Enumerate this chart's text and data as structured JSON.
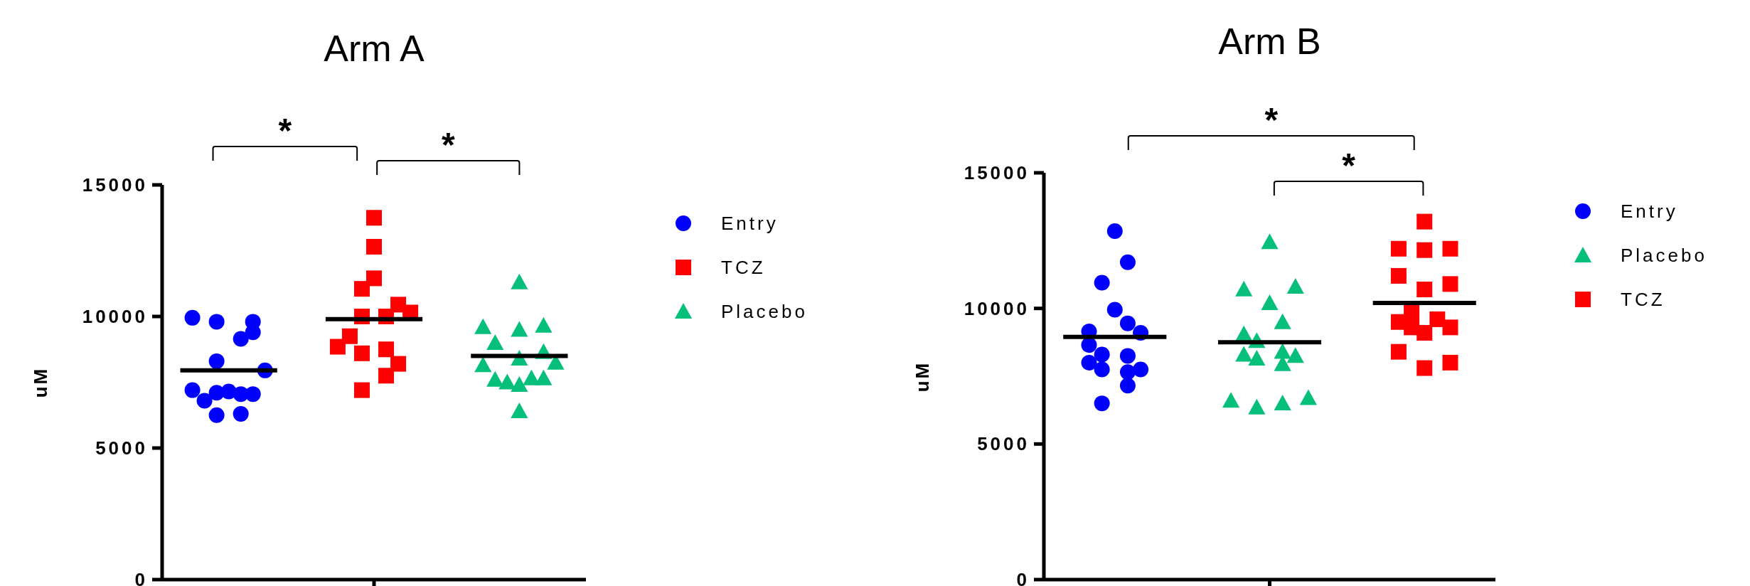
{
  "chart_data": [
    {
      "type": "scatter",
      "title": "Arm A",
      "ylabel": "uM",
      "categories": [
        null,
        null,
        null,
        null,
        null,
        null,
        null,
        null,
        null,
        null,
        null,
        null,
        null,
        null,
        null,
        null,
        null,
        null,
        null,
        null,
        null,
        null,
        null,
        null,
        null,
        null,
        null,
        null,
        null,
        null,
        null,
        null,
        null,
        null,
        null
      ],
      "ylim": [
        0,
        15000
      ],
      "yticks": [
        0,
        5000,
        10000,
        15000
      ],
      "tick_labels": "y",
      "legend": "top right",
      "annotations": [
        "*",
        "*"
      ],
      "series": [
        {
          "name": "Entry",
          "color": "#0000ff",
          "marker": "circle",
          "values": [
            null,
            null,
            9950,
            6800,
            9800,
            7150,
            9150,
            9800,
            7950,
            null,
            null,
            null,
            null,
            null,
            null,
            null,
            null,
            null,
            null,
            null,
            null,
            null,
            null,
            null,
            null,
            null,
            null,
            null,
            null,
            null,
            null,
            null,
            null,
            null,
            null
          ]
        },
        {
          "color": "#0000ff",
          "marker": "circle",
          "values": [
            null,
            null,
            7200,
            null,
            8300,
            null,
            7050,
            9400,
            null,
            null,
            null,
            null,
            null,
            null,
            null,
            null,
            null,
            null,
            null,
            null,
            null,
            null,
            null,
            null,
            null,
            null,
            null,
            null,
            null,
            null,
            null,
            null,
            null,
            null,
            null
          ]
        },
        {
          "color": "#0000ff",
          "marker": "circle",
          "values": [
            null,
            null,
            null,
            null,
            7100,
            null,
            6300,
            7050,
            null,
            null,
            null,
            null,
            null,
            null,
            null,
            null,
            null,
            null,
            null,
            null,
            null,
            null,
            null,
            null,
            null,
            null,
            null,
            null,
            null,
            null,
            null,
            null,
            null,
            null,
            null
          ]
        },
        {
          "color": "#0000ff",
          "marker": "circle",
          "values": [
            null,
            null,
            null,
            null,
            6250,
            null,
            null,
            null,
            null,
            null,
            null,
            null,
            null,
            null,
            null,
            null,
            null,
            null,
            null,
            null,
            null,
            null,
            null,
            null,
            null,
            null,
            null,
            null,
            null,
            null,
            null,
            null,
            null,
            null,
            null
          ]
        },
        {
          "name": "TCZ",
          "color": "#ff0000",
          "marker": "square",
          "values": [
            null,
            null,
            null,
            null,
            null,
            null,
            null,
            null,
            null,
            null,
            null,
            null,
            null,
            null,
            8850,
            9250,
            11050,
            13750,
            10000,
            10450,
            10150,
            null,
            null,
            null,
            null,
            null,
            null,
            null,
            null,
            null,
            null,
            null,
            null,
            null,
            null
          ]
        },
        {
          "color": "#ff0000",
          "marker": "square",
          "values": [
            null,
            null,
            null,
            null,
            null,
            null,
            null,
            null,
            null,
            null,
            null,
            null,
            null,
            null,
            null,
            null,
            10000,
            12650,
            8750,
            8200,
            null,
            null,
            null,
            null,
            null,
            null,
            null,
            null,
            null,
            null,
            null,
            null,
            null,
            null,
            null
          ]
        },
        {
          "color": "#ff0000",
          "marker": "square",
          "values": [
            null,
            null,
            null,
            null,
            null,
            null,
            null,
            null,
            null,
            null,
            null,
            null,
            null,
            null,
            null,
            null,
            8600,
            11450,
            7750,
            null,
            null,
            null,
            null,
            null,
            null,
            null,
            null,
            null,
            null,
            null,
            null,
            null,
            null,
            null,
            null
          ]
        },
        {
          "color": "#ff0000",
          "marker": "square",
          "values": [
            null,
            null,
            null,
            null,
            null,
            null,
            null,
            null,
            null,
            null,
            null,
            null,
            null,
            null,
            null,
            null,
            7200,
            null,
            null,
            null,
            null,
            null,
            null,
            null,
            null,
            null,
            null,
            null,
            null,
            null,
            null,
            null,
            null,
            null,
            null
          ]
        },
        {
          "name": "Placebo",
          "color": "#06bf7b",
          "marker": "triangle",
          "values": [
            null,
            null,
            null,
            null,
            null,
            null,
            null,
            null,
            null,
            null,
            null,
            null,
            null,
            null,
            null,
            null,
            null,
            null,
            null,
            null,
            null,
            null,
            null,
            null,
            null,
            null,
            9600,
            9000,
            7500,
            11300,
            7650,
            9650,
            8250,
            null,
            null
          ]
        },
        {
          "color": "#06bf7b",
          "marker": "triangle",
          "values": [
            null,
            null,
            null,
            null,
            null,
            null,
            null,
            null,
            null,
            null,
            null,
            null,
            null,
            null,
            null,
            null,
            null,
            null,
            null,
            null,
            null,
            null,
            null,
            null,
            null,
            null,
            8150,
            7600,
            null,
            9500,
            null,
            8650,
            null,
            null,
            null
          ]
        },
        {
          "color": "#06bf7b",
          "marker": "triangle",
          "values": [
            null,
            null,
            null,
            null,
            null,
            null,
            null,
            null,
            null,
            null,
            null,
            null,
            null,
            null,
            null,
            null,
            null,
            null,
            null,
            null,
            null,
            null,
            null,
            null,
            null,
            null,
            null,
            null,
            null,
            8400,
            null,
            7650,
            null,
            null,
            null
          ]
        },
        {
          "color": "#06bf7b",
          "marker": "triangle",
          "values": [
            null,
            null,
            null,
            null,
            null,
            null,
            null,
            null,
            null,
            null,
            null,
            null,
            null,
            null,
            null,
            null,
            null,
            null,
            null,
            null,
            null,
            null,
            null,
            null,
            null,
            null,
            null,
            null,
            null,
            7400,
            null,
            null,
            null,
            null,
            null
          ]
        },
        {
          "color": "#06bf7b",
          "marker": "triangle",
          "values": [
            null,
            null,
            null,
            null,
            null,
            null,
            null,
            null,
            null,
            null,
            null,
            null,
            null,
            null,
            null,
            null,
            null,
            null,
            null,
            null,
            null,
            null,
            null,
            null,
            null,
            null,
            null,
            null,
            null,
            6400,
            null,
            null,
            null,
            null,
            null
          ]
        },
        {
          "type": "line",
          "color": "#000000",
          "values": [
            null,
            7950,
            7950,
            7950,
            7950,
            7950,
            7950,
            7950,
            7950,
            7950,
            null,
            null,
            null,
            null,
            null,
            null,
            null,
            null,
            null,
            null,
            null,
            null,
            null,
            null,
            null,
            null,
            null,
            null,
            null,
            null,
            null,
            null,
            null,
            null,
            null
          ]
        },
        {
          "type": "line",
          "color": "#000000",
          "values": [
            null,
            null,
            null,
            null,
            null,
            null,
            null,
            null,
            null,
            null,
            null,
            null,
            null,
            9900,
            9900,
            9900,
            9900,
            9900,
            9900,
            9900,
            9900,
            9900,
            null,
            null,
            null,
            null,
            null,
            null,
            null,
            null,
            null,
            null,
            null,
            null,
            null
          ]
        },
        {
          "type": "line",
          "color": "#000000",
          "values": [
            null,
            null,
            null,
            null,
            null,
            null,
            null,
            null,
            null,
            null,
            null,
            null,
            null,
            null,
            null,
            null,
            null,
            null,
            null,
            null,
            null,
            null,
            null,
            null,
            null,
            8500,
            8500,
            8500,
            8500,
            8500,
            8500,
            8500,
            8500,
            8500,
            null
          ]
        }
      ]
    },
    {
      "type": "scatter",
      "title": "Arm B",
      "ylabel": "uM",
      "categories": [
        null,
        null,
        null,
        null,
        null,
        null,
        null,
        null,
        null,
        null,
        null,
        null,
        null,
        null,
        null,
        null,
        null,
        null,
        null,
        null,
        null,
        null,
        null,
        null,
        null,
        null,
        null,
        null,
        null,
        null,
        null,
        null,
        null,
        null,
        null
      ],
      "ylim": [
        0,
        15000
      ],
      "yticks": [
        0,
        5000,
        10000,
        15000
      ],
      "tick_labels": "y",
      "legend": "top right",
      "annotations": [
        "*",
        "*"
      ],
      "series": [
        {
          "name": "Entry",
          "color": "#0000ff",
          "marker": "circle",
          "values": [
            null,
            null,
            null,
            9150,
            10950,
            12850,
            11700,
            9100,
            null,
            null,
            null,
            null,
            null,
            null,
            null,
            null,
            null,
            null,
            null,
            null,
            null,
            null,
            null,
            null,
            null,
            null,
            null,
            null,
            null,
            null,
            null,
            null,
            null,
            null,
            null
          ]
        },
        {
          "color": "#0000ff",
          "marker": "circle",
          "values": [
            null,
            null,
            null,
            8650,
            8300,
            9950,
            9450,
            7750,
            null,
            null,
            null,
            null,
            null,
            null,
            null,
            null,
            null,
            null,
            null,
            null,
            null,
            null,
            null,
            null,
            null,
            null,
            null,
            null,
            null,
            null,
            null,
            null,
            null,
            null,
            null
          ]
        },
        {
          "color": "#0000ff",
          "marker": "circle",
          "values": [
            null,
            null,
            null,
            8000,
            7750,
            null,
            8250,
            null,
            null,
            null,
            null,
            null,
            null,
            null,
            null,
            null,
            null,
            null,
            null,
            null,
            null,
            null,
            null,
            null,
            null,
            null,
            null,
            null,
            null,
            null,
            null,
            null,
            null,
            null,
            null
          ]
        },
        {
          "color": "#0000ff",
          "marker": "circle",
          "values": [
            null,
            null,
            null,
            null,
            6500,
            null,
            7650,
            null,
            null,
            null,
            null,
            null,
            null,
            null,
            null,
            null,
            null,
            null,
            null,
            null,
            null,
            null,
            null,
            null,
            null,
            null,
            null,
            null,
            null,
            null,
            null,
            null,
            null,
            null,
            null
          ]
        },
        {
          "color": "#0000ff",
          "marker": "circle",
          "values": [
            null,
            null,
            null,
            null,
            null,
            null,
            7150,
            null,
            null,
            null,
            null,
            null,
            null,
            null,
            null,
            null,
            null,
            null,
            null,
            null,
            null,
            null,
            null,
            null,
            null,
            null,
            null,
            null,
            null,
            null,
            null,
            null,
            null,
            null,
            null
          ]
        },
        {
          "name": "Placebo",
          "color": "#06bf7b",
          "marker": "triangle",
          "values": [
            null,
            null,
            null,
            null,
            null,
            null,
            null,
            null,
            null,
            null,
            null,
            null,
            null,
            null,
            6600,
            10700,
            8800,
            12450,
            9500,
            10800,
            6700,
            null,
            null,
            null,
            null,
            null,
            null,
            null,
            null,
            null,
            null,
            null,
            null,
            null,
            null
          ]
        },
        {
          "color": "#06bf7b",
          "marker": "triangle",
          "values": [
            null,
            null,
            null,
            null,
            null,
            null,
            null,
            null,
            null,
            null,
            null,
            null,
            null,
            null,
            null,
            9050,
            8150,
            10200,
            8400,
            8250,
            null,
            null,
            null,
            null,
            null,
            null,
            null,
            null,
            null,
            null,
            null,
            null,
            null,
            null,
            null
          ]
        },
        {
          "color": "#06bf7b",
          "marker": "triangle",
          "values": [
            null,
            null,
            null,
            null,
            null,
            null,
            null,
            null,
            null,
            null,
            null,
            null,
            null,
            null,
            null,
            8300,
            6350,
            null,
            7950,
            null,
            null,
            null,
            null,
            null,
            null,
            null,
            null,
            null,
            null,
            null,
            null,
            null,
            null,
            null,
            null
          ]
        },
        {
          "color": "#06bf7b",
          "marker": "triangle",
          "values": [
            null,
            null,
            null,
            null,
            null,
            null,
            null,
            null,
            null,
            null,
            null,
            null,
            null,
            null,
            null,
            null,
            null,
            null,
            6500,
            null,
            null,
            null,
            null,
            null,
            null,
            null,
            null,
            null,
            null,
            null,
            null,
            null,
            null,
            null,
            null
          ]
        },
        {
          "name": "TCZ",
          "color": "#ff0000",
          "marker": "square",
          "values": [
            null,
            null,
            null,
            null,
            null,
            null,
            null,
            null,
            null,
            null,
            null,
            null,
            null,
            null,
            null,
            null,
            null,
            null,
            null,
            null,
            null,
            null,
            null,
            null,
            null,
            null,
            null,
            12200,
            9850,
            13200,
            9600,
            12200,
            null,
            null,
            null
          ]
        },
        {
          "color": "#ff0000",
          "marker": "square",
          "values": [
            null,
            null,
            null,
            null,
            null,
            null,
            null,
            null,
            null,
            null,
            null,
            null,
            null,
            null,
            null,
            null,
            null,
            null,
            null,
            null,
            null,
            null,
            null,
            null,
            null,
            null,
            null,
            11200,
            9300,
            12150,
            null,
            10900,
            null,
            null,
            null
          ]
        },
        {
          "color": "#ff0000",
          "marker": "square",
          "values": [
            null,
            null,
            null,
            null,
            null,
            null,
            null,
            null,
            null,
            null,
            null,
            null,
            null,
            null,
            null,
            null,
            null,
            null,
            null,
            null,
            null,
            null,
            null,
            null,
            null,
            null,
            null,
            9500,
            null,
            10700,
            null,
            9300,
            null,
            null,
            null
          ]
        },
        {
          "color": "#ff0000",
          "marker": "square",
          "values": [
            null,
            null,
            null,
            null,
            null,
            null,
            null,
            null,
            null,
            null,
            null,
            null,
            null,
            null,
            null,
            null,
            null,
            null,
            null,
            null,
            null,
            null,
            null,
            null,
            null,
            null,
            null,
            8400,
            null,
            9100,
            null,
            8000,
            null,
            null,
            null
          ]
        },
        {
          "color": "#ff0000",
          "marker": "square",
          "values": [
            null,
            null,
            null,
            null,
            null,
            null,
            null,
            null,
            null,
            null,
            null,
            null,
            null,
            null,
            null,
            null,
            null,
            null,
            null,
            null,
            null,
            null,
            null,
            null,
            null,
            null,
            null,
            null,
            null,
            7800,
            null,
            null,
            null,
            null,
            null
          ]
        },
        {
          "type": "line",
          "color": "#000000",
          "values": [
            null,
            8950,
            8950,
            8950,
            8950,
            8950,
            8950,
            8950,
            8950,
            8950,
            null,
            null,
            null,
            null,
            null,
            null,
            null,
            null,
            null,
            null,
            null,
            null,
            null,
            null,
            null,
            null,
            null,
            null,
            null,
            null,
            null,
            null,
            null,
            null,
            null
          ]
        },
        {
          "type": "line",
          "color": "#000000",
          "values": [
            null,
            null,
            null,
            null,
            null,
            null,
            null,
            null,
            null,
            null,
            null,
            null,
            null,
            8750,
            8750,
            8750,
            8750,
            8750,
            8750,
            8750,
            8750,
            8750,
            null,
            null,
            null,
            null,
            null,
            null,
            null,
            null,
            null,
            null,
            null,
            null,
            null
          ]
        },
        {
          "type": "line",
          "color": "#000000",
          "values": [
            null,
            null,
            null,
            null,
            null,
            null,
            null,
            null,
            null,
            null,
            null,
            null,
            null,
            null,
            null,
            null,
            null,
            null,
            null,
            null,
            null,
            null,
            null,
            null,
            null,
            10200,
            10200,
            10200,
            10200,
            10200,
            10200,
            10200,
            10200,
            10200,
            null
          ]
        }
      ]
    }
  ]
}
